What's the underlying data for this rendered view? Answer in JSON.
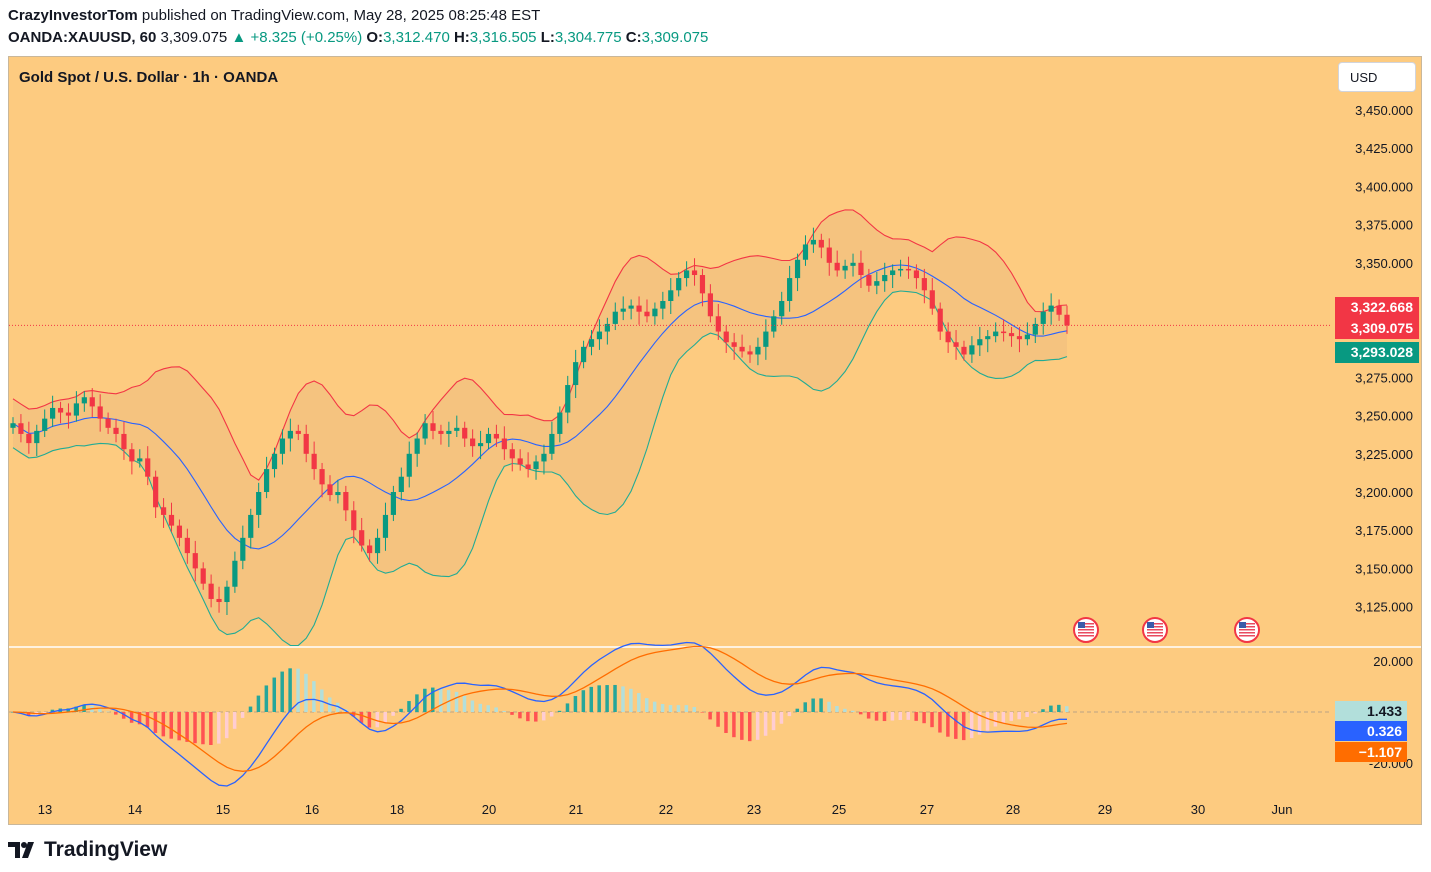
{
  "header": {
    "author": "CrazyInvestorTom",
    "published_text": " published on TradingView.com, May 28, 2025 08:25:48 EST",
    "symbol": "OANDA:XAUUSD, 60",
    "last": "3,309.075",
    "change": "+8.325 (+0.25%)",
    "open_label": "O:",
    "open": "3,312.470",
    "high_label": "H:",
    "high": "3,316.505",
    "low_label": "L:",
    "low": "3,304.775",
    "close_label": "C:",
    "close": "3,309.075"
  },
  "chart_title": "Gold Spot / U.S. Dollar · 1h · OANDA",
  "currency_button": "USD",
  "footer": {
    "brand": "TradingView"
  },
  "colors": {
    "background": "#fdcb80",
    "up": "#089981",
    "down": "#f23645",
    "bb_upper": "#f23645",
    "bb_lower": "#22ab94",
    "bb_basis": "#2962ff",
    "macd": "#2962ff",
    "signal": "#ff6d00"
  },
  "chart_data": [
    {
      "type": "candlestick",
      "title": "Gold Spot / U.S. Dollar · 1h · OANDA",
      "overlays": [
        "Bollinger Bands"
      ],
      "y_ticks": [
        "3,125.000",
        "3,150.000",
        "3,175.000",
        "3,200.000",
        "3,225.000",
        "3,250.000",
        "3,275.000",
        "3,350.000",
        "3,375.000",
        "3,400.000",
        "3,425.000",
        "3,450.000"
      ],
      "x_ticks": [
        "13",
        "14",
        "15",
        "16",
        "18",
        "20",
        "21",
        "22",
        "23",
        "25",
        "27",
        "28",
        "29",
        "30",
        "Jun"
      ],
      "ylim": [
        3110,
        3460
      ],
      "price_labels": [
        {
          "label": "3,322.668",
          "value": 3322.668,
          "color": "#f23645"
        },
        {
          "label": "3,309.075",
          "value": 3309.075,
          "color": "#f23645"
        },
        {
          "label": "3,293.028",
          "value": 3293.028,
          "color": "#089981"
        }
      ],
      "last_price": 3309.075,
      "event_markers": 3,
      "closes": [
        3245,
        3238,
        3232,
        3240,
        3248,
        3255,
        3252,
        3250,
        3258,
        3262,
        3256,
        3248,
        3242,
        3238,
        3228,
        3220,
        3222,
        3210,
        3190,
        3185,
        3178,
        3170,
        3160,
        3150,
        3140,
        3130,
        3128,
        3138,
        3155,
        3170,
        3185,
        3200,
        3215,
        3225,
        3235,
        3240,
        3238,
        3225,
        3215,
        3205,
        3198,
        3200,
        3188,
        3175,
        3165,
        3160,
        3170,
        3185,
        3200,
        3210,
        3225,
        3235,
        3245,
        3240,
        3238,
        3240,
        3242,
        3235,
        3230,
        3232,
        3238,
        3235,
        3228,
        3222,
        3218,
        3215,
        3220,
        3225,
        3238,
        3252,
        3270,
        3285,
        3295,
        3300,
        3305,
        3310,
        3318,
        3320,
        3322,
        3318,
        3315,
        3320,
        3325,
        3332,
        3340,
        3345,
        3342,
        3330,
        3315,
        3305,
        3298,
        3295,
        3292,
        3290,
        3295,
        3305,
        3315,
        3325,
        3340,
        3352,
        3362,
        3365,
        3360,
        3350,
        3345,
        3348,
        3350,
        3342,
        3335,
        3338,
        3342,
        3345,
        3346,
        3345,
        3340,
        3332,
        3320,
        3305,
        3298,
        3295,
        3290,
        3296,
        3300,
        3302,
        3305,
        3304,
        3302,
        3300,
        3303,
        3310,
        3318,
        3322,
        3316,
        3309
      ]
    },
    {
      "type": "line",
      "title": "MACD",
      "y_ticks": [
        "20.000",
        "-20.000"
      ],
      "ylim": [
        -28,
        28
      ],
      "labels": [
        {
          "label": "1.433",
          "value": 1.433,
          "name": "histogram"
        },
        {
          "label": "0.326",
          "value": 0.326,
          "name": "macd"
        },
        {
          "label": "−1.107",
          "value": -1.107,
          "name": "signal"
        }
      ]
    }
  ]
}
